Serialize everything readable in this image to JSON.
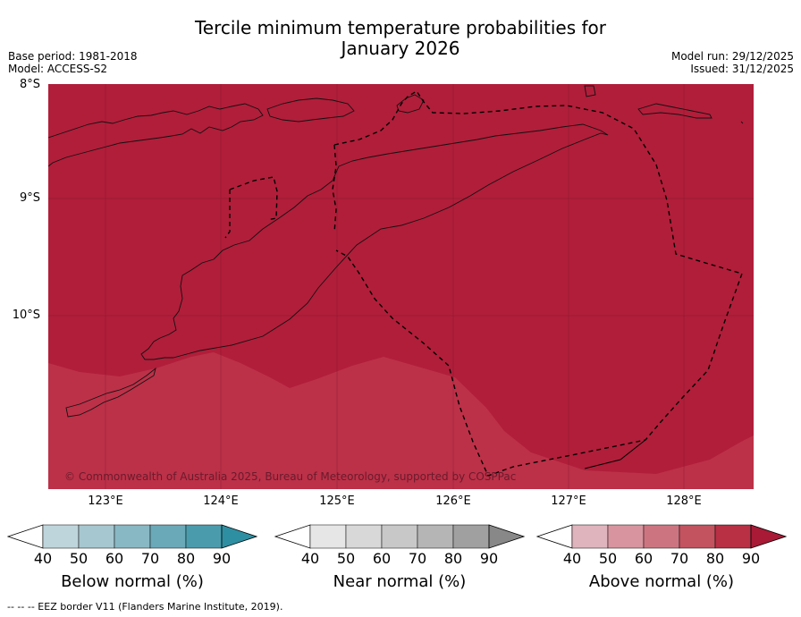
{
  "header": {
    "title_line1": "Tercile minimum temperature probabilities for",
    "title_line2": "January 2026",
    "base_period": "Base period: 1981-2018",
    "model": "Model: ACCESS-S2",
    "model_run": "Model run: 29/12/2025",
    "issued": "Issued: 31/12/2025"
  },
  "map": {
    "lat_labels": [
      "8°S",
      "9°S",
      "10°S"
    ],
    "lon_labels": [
      "123°E",
      "124°E",
      "125°E",
      "126°E",
      "127°E",
      "128°E"
    ],
    "copyright": "© Commonwealth of Australia 2025, Bureau of Meteorology, supported by COSPPac",
    "fill_colors": {
      "above_90": "#b11e3a",
      "above_80": "#bc3148"
    }
  },
  "legend": {
    "ticks": [
      "40",
      "50",
      "60",
      "70",
      "80",
      "90"
    ],
    "below": {
      "title": "Below normal (%)",
      "colors": [
        "#ffffff",
        "#bfd5dc",
        "#a6c7cf",
        "#88b8c3",
        "#6aa9b8",
        "#4a9cad",
        "#2e8fa2"
      ]
    },
    "near": {
      "title": "Near normal (%)",
      "colors": [
        "#ffffff",
        "#e6e6e6",
        "#d8d8d8",
        "#c8c8c8",
        "#b5b5b5",
        "#a0a0a0",
        "#888888"
      ]
    },
    "above": {
      "title": "Above normal (%)",
      "colors": [
        "#ffffff",
        "#e0b4bd",
        "#d8959f",
        "#cc7580",
        "#c2535f",
        "#b92f44",
        "#a81a35"
      ]
    }
  },
  "footer": {
    "eez_note": "--  --  -- EEZ border V11 (Flanders Marine Institute, 2019)."
  }
}
